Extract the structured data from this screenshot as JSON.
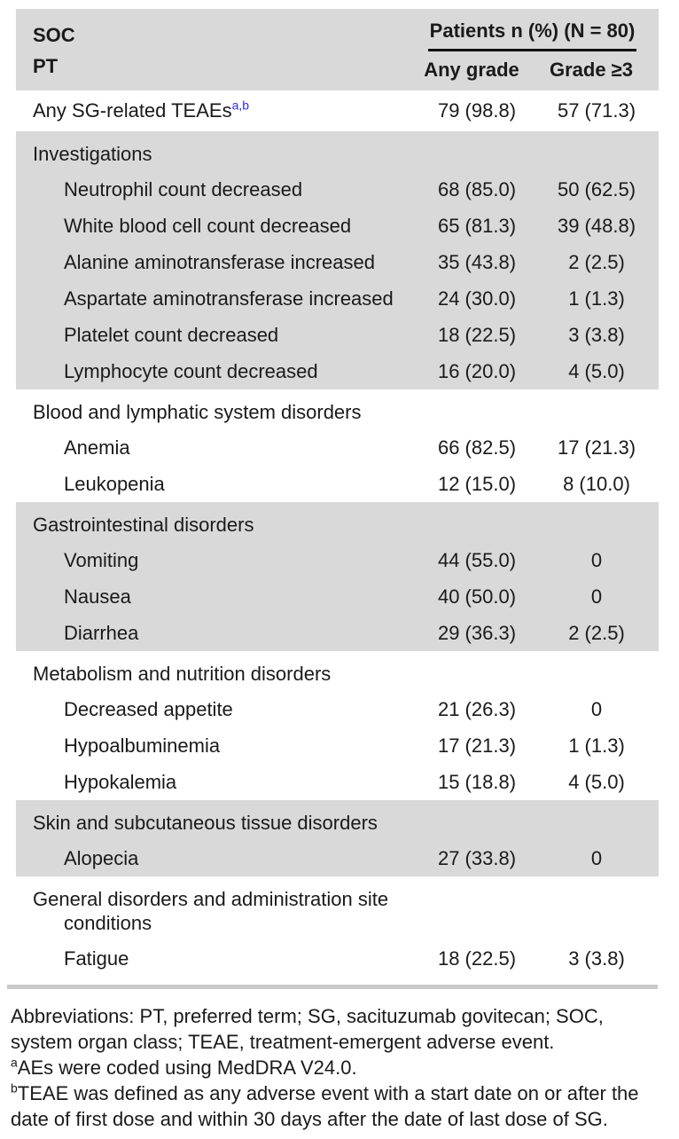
{
  "colors": {
    "section_shade": "#d9d9d9",
    "superscript_blue": "#2d2df0",
    "bottom_rule_gray": "#c9c9c9",
    "header_underline_black": "#111111"
  },
  "table": {
    "header": {
      "col1_line1": "SOC",
      "col1_line2": "PT",
      "group_header": "Patients n (%) (N = 80)",
      "col_any_grade": "Any grade",
      "col_grade_ge3": "Grade ≥3"
    },
    "top_row": {
      "label": "Any SG-related TEAEs",
      "superscript": "a,b",
      "any_grade": "79 (98.8)",
      "grade_ge3": "57 (71.3)"
    },
    "sections": [
      {
        "soc": "Investigations",
        "shaded": true,
        "rows": [
          {
            "pt": "Neutrophil count decreased",
            "any_grade": "68 (85.0)",
            "grade_ge3": "50 (62.5)"
          },
          {
            "pt": "White blood cell count decreased",
            "any_grade": "65 (81.3)",
            "grade_ge3": "39 (48.8)"
          },
          {
            "pt": "Alanine aminotransferase increased",
            "any_grade": "35 (43.8)",
            "grade_ge3": "2 (2.5)"
          },
          {
            "pt": "Aspartate aminotransferase increased",
            "any_grade": "24 (30.0)",
            "grade_ge3": "1 (1.3)"
          },
          {
            "pt": "Platelet count decreased",
            "any_grade": "18 (22.5)",
            "grade_ge3": "3 (3.8)"
          },
          {
            "pt": "Lymphocyte count decreased",
            "any_grade": "16 (20.0)",
            "grade_ge3": "4 (5.0)"
          }
        ]
      },
      {
        "soc": "Blood and lymphatic system disorders",
        "shaded": false,
        "rows": [
          {
            "pt": "Anemia",
            "any_grade": "66 (82.5)",
            "grade_ge3": "17 (21.3)"
          },
          {
            "pt": "Leukopenia",
            "any_grade": "12 (15.0)",
            "grade_ge3": "8 (10.0)"
          }
        ]
      },
      {
        "soc": "Gastrointestinal disorders",
        "shaded": true,
        "rows": [
          {
            "pt": "Vomiting",
            "any_grade": "44 (55.0)",
            "grade_ge3": "0"
          },
          {
            "pt": "Nausea",
            "any_grade": "40 (50.0)",
            "grade_ge3": "0"
          },
          {
            "pt": "Diarrhea",
            "any_grade": "29 (36.3)",
            "grade_ge3": "2 (2.5)"
          }
        ]
      },
      {
        "soc": "Metabolism and nutrition disorders",
        "shaded": false,
        "rows": [
          {
            "pt": "Decreased appetite",
            "any_grade": "21 (26.3)",
            "grade_ge3": "0"
          },
          {
            "pt": "Hypoalbuminemia",
            "any_grade": "17 (21.3)",
            "grade_ge3": "1 (1.3)"
          },
          {
            "pt": "Hypokalemia",
            "any_grade": "15 (18.8)",
            "grade_ge3": "4 (5.0)"
          }
        ]
      },
      {
        "soc": "Skin and subcutaneous tissue disorders",
        "shaded": true,
        "rows": [
          {
            "pt": "Alopecia",
            "any_grade": "27 (33.8)",
            "grade_ge3": "0"
          }
        ]
      },
      {
        "soc": "General disorders and administration site",
        "soc_line2": "conditions",
        "shaded": false,
        "rows": [
          {
            "pt": "Fatigue",
            "any_grade": "18 (22.5)",
            "grade_ge3": "3 (3.8)"
          }
        ]
      }
    ]
  },
  "footnotes": {
    "lines": [
      {
        "sup": "",
        "text": "Abbreviations: PT, preferred term; SG, sacituzumab govitecan; SOC,"
      },
      {
        "sup": "",
        "text": "system organ class; TEAE, treatment-emergent adverse event."
      },
      {
        "sup": "a",
        "text": "AEs were coded using MedDRA V24.0."
      },
      {
        "sup": "b",
        "text": "TEAE was defined as any adverse event with a start date on or after the"
      },
      {
        "sup": "",
        "text": "date of first dose and within 30 days after the date of last dose of SG."
      }
    ]
  }
}
